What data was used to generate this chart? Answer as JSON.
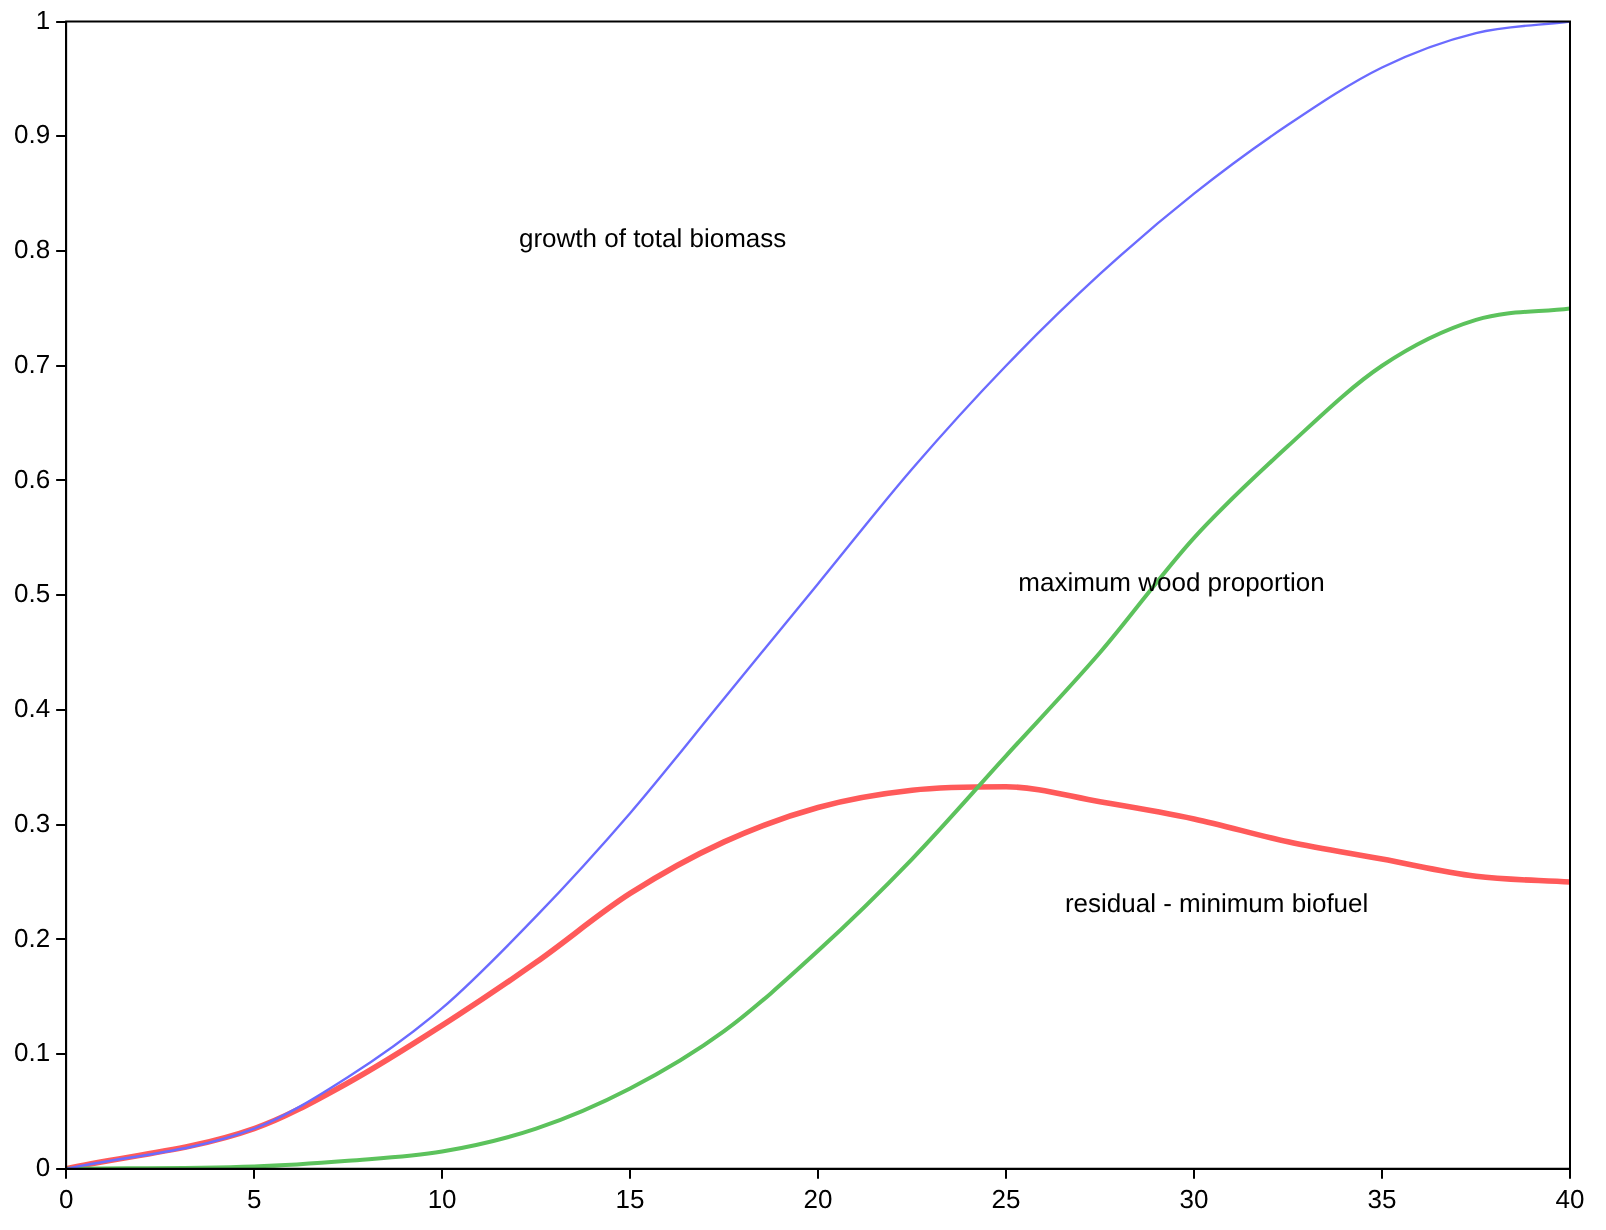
{
  "chart_data": {
    "type": "line",
    "x": [
      0,
      5,
      7.5,
      10,
      12.5,
      15,
      17.5,
      20,
      22.5,
      25,
      27.5,
      30,
      32.5,
      35,
      37.5,
      40
    ],
    "series": [
      {
        "color": "#6b6bff",
        "values": [
          0,
          0.035,
          0.08,
          0.14,
          0.22,
          0.31,
          0.41,
          0.51,
          0.61,
          0.7,
          0.78,
          0.85,
          0.91,
          0.96,
          0.99,
          1.0
        ]
      },
      {
        "color": "#5cc25c",
        "values": [
          0,
          0.002,
          0.007,
          0.015,
          0.035,
          0.07,
          0.12,
          0.19,
          0.27,
          0.36,
          0.45,
          0.55,
          0.63,
          0.7,
          0.74,
          0.75
        ]
      },
      {
        "color": "#ff5a5a",
        "values": [
          0,
          0.035,
          0.075,
          0.125,
          0.18,
          0.24,
          0.285,
          0.315,
          0.33,
          0.333,
          0.32,
          0.305,
          0.285,
          0.27,
          0.255,
          0.25
        ]
      }
    ],
    "xlim": [
      0,
      40
    ],
    "xticks": [
      0,
      5,
      10,
      15,
      20,
      25,
      30,
      35,
      40
    ],
    "ylim": [
      0,
      1
    ],
    "yticks": [
      0,
      0.1,
      0.2,
      0.3,
      0.4,
      0.5,
      0.6,
      0.7,
      0.8,
      0.9,
      1
    ],
    "annotations": [
      "growth of total biomass",
      "maximum wood proportion",
      "residual - minimum biofuel"
    ],
    "grid": false,
    "legend": false,
    "marker": "none",
    "line_style": "solid"
  }
}
